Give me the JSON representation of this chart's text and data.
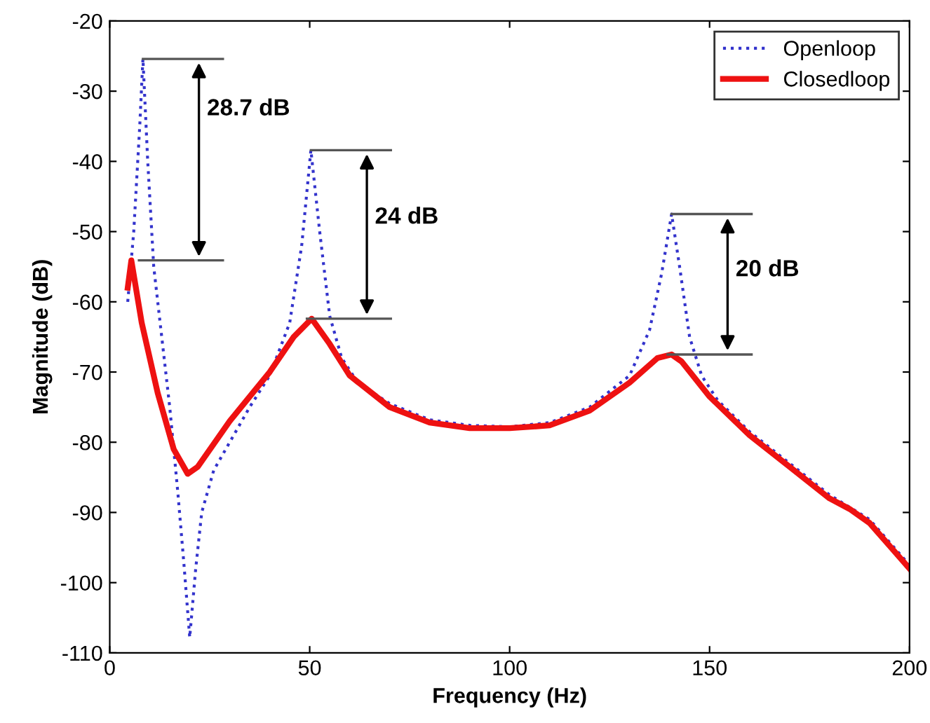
{
  "chart_data": {
    "type": "line",
    "xlabel": "Frequency (Hz)",
    "ylabel": "Magnitude (dB)",
    "xlim": [
      0,
      200
    ],
    "xticks": [
      0,
      50,
      100,
      150,
      200
    ],
    "ylim": [
      -110,
      -20
    ],
    "yticks": [
      -110,
      -100,
      -90,
      -80,
      -70,
      -60,
      -50,
      -40,
      -30,
      -20
    ],
    "grid": false,
    "legend": "top right",
    "marker": "none",
    "series": [
      {
        "name": "Openloop",
        "color": "#3333cc",
        "line_style": "dotted",
        "x": [
          4.5,
          6,
          7.5,
          8.3,
          9.5,
          11,
          13,
          15,
          17,
          18.5,
          20,
          21.5,
          23,
          26,
          30,
          35,
          40,
          45,
          48,
          50.3,
          52.5,
          55,
          58,
          62,
          70,
          80,
          90,
          100,
          110,
          120,
          130,
          135,
          138,
          140.5,
          142.5,
          145,
          148,
          152,
          160,
          170,
          180,
          190,
          200
        ],
        "values": [
          -60,
          -50,
          -35,
          -25.4,
          -40,
          -55,
          -65,
          -75,
          -87,
          -97,
          -107.8,
          -98,
          -90,
          -84,
          -80,
          -75,
          -70.5,
          -63,
          -52,
          -38.4,
          -50,
          -62,
          -68,
          -71.5,
          -74.5,
          -76.8,
          -77.6,
          -77.8,
          -77.2,
          -75,
          -70.5,
          -64,
          -56,
          -47.5,
          -55,
          -65,
          -70.5,
          -74,
          -78.5,
          -83,
          -87.5,
          -91,
          -97.5
        ]
      },
      {
        "name": "Closedloop",
        "color": "#ee1111",
        "line_style": "solid",
        "x": [
          4.5,
          5.4,
          8,
          12,
          16,
          19.5,
          22,
          30,
          40,
          46,
          50.5,
          55,
          60,
          70,
          80,
          90,
          100,
          110,
          120,
          130,
          137,
          140.5,
          143,
          150,
          160,
          170,
          180,
          185,
          190,
          200
        ],
        "values": [
          -58,
          -54.1,
          -63,
          -73,
          -81,
          -84.5,
          -83.5,
          -77,
          -70,
          -65,
          -62.4,
          -66,
          -70.5,
          -75,
          -77.2,
          -78,
          -78,
          -77.6,
          -75.5,
          -71.5,
          -68,
          -67.5,
          -68.5,
          -73.5,
          -79,
          -83.5,
          -88,
          -89.5,
          -91.5,
          -98
        ]
      }
    ],
    "annotations": [
      "28.7 dB",
      "24 dB",
      "20 dB"
    ]
  }
}
